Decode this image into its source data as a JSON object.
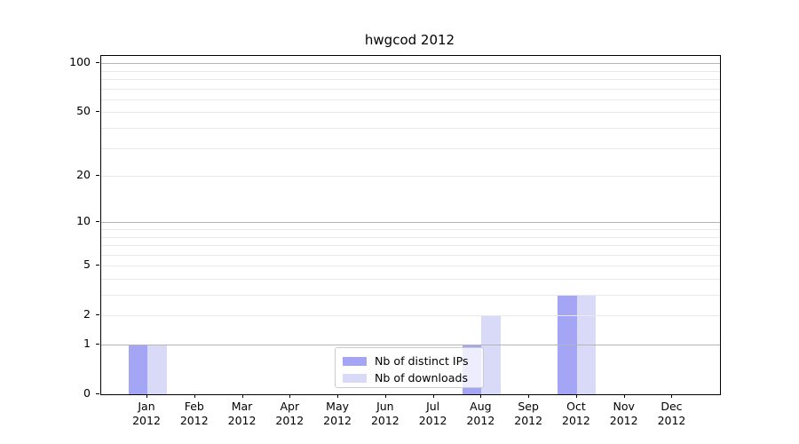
{
  "title": "hwgcod 2012",
  "chart_data": {
    "type": "bar",
    "title": "hwgcod 2012",
    "categories": [
      "Jan",
      "Feb",
      "Mar",
      "Apr",
      "May",
      "Jun",
      "Jul",
      "Aug",
      "Sep",
      "Oct",
      "Nov",
      "Dec"
    ],
    "category_year": "2012",
    "series": [
      {
        "name": "Nb of distinct IPs",
        "color": "#a5a5f5",
        "values": [
          1,
          0,
          0,
          0,
          0,
          0,
          0,
          1,
          0,
          3,
          0,
          0
        ]
      },
      {
        "name": "Nb of downloads",
        "color": "#d9d9f8",
        "values": [
          1,
          0,
          0,
          0,
          0,
          0,
          0,
          2,
          0,
          3,
          0,
          0
        ]
      }
    ],
    "xlabel": "",
    "ylabel": "",
    "y_axis": {
      "scale": "log1p",
      "tick_values": [
        0,
        1,
        2,
        5,
        10,
        20,
        50,
        100
      ],
      "tick_labels": [
        "0",
        "1",
        "2",
        "5",
        "10",
        "20",
        "50",
        "100"
      ],
      "ylim": [
        0,
        110
      ],
      "gridlines_dark": [
        1,
        10,
        100
      ],
      "gridlines_light": [
        2,
        3,
        4,
        5,
        6,
        7,
        8,
        9,
        20,
        30,
        40,
        50,
        60,
        70,
        80,
        90
      ]
    },
    "grid": true,
    "legend": {
      "position": "lower-center",
      "entries": [
        "Nb of distinct IPs",
        "Nb of downloads"
      ]
    }
  },
  "colors": {
    "background": "#ffffff",
    "bar_distinct_ips": "#a5a5f5",
    "bar_downloads": "#d9d9f8",
    "gridline_dark": "#b5b5b5",
    "gridline_light": "#e9e9e9",
    "axis": "#000000",
    "legend_border": "#cccccc",
    "text": "#000000"
  }
}
